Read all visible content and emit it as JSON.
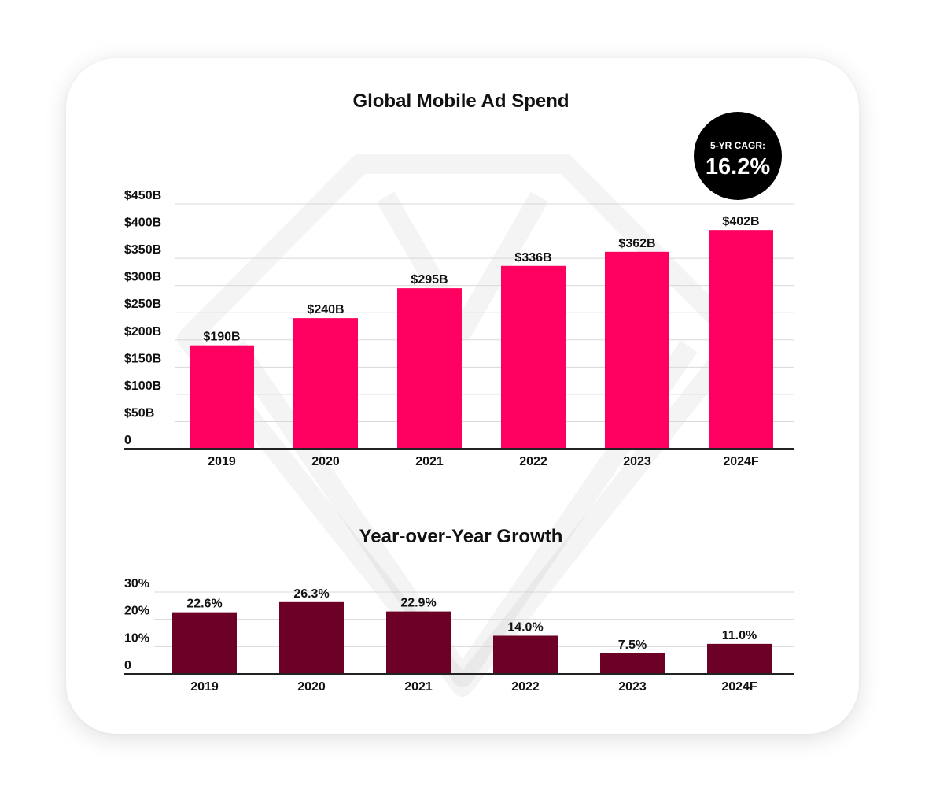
{
  "badge": {
    "label": "5-YR CAGR:",
    "value": "16.2%"
  },
  "colors": {
    "spend_bar": "#ff0060",
    "growth_bar": "#6d0026",
    "badge_bg": "#000000",
    "text": "#111111"
  },
  "chart_data": [
    {
      "type": "bar",
      "title": "Global Mobile Ad Spend",
      "categories": [
        "2019",
        "2020",
        "2021",
        "2022",
        "2023",
        "2024F"
      ],
      "values": [
        190,
        240,
        295,
        336,
        362,
        402
      ],
      "value_labels": [
        "$190B",
        "$240B",
        "$295B",
        "$336B",
        "$362B",
        "$402B"
      ],
      "y_ticks": [
        0,
        50,
        100,
        150,
        200,
        250,
        300,
        350,
        400,
        450
      ],
      "y_tick_labels": [
        "0",
        "$50B",
        "$100B",
        "$150B",
        "$200B",
        "$250B",
        "$300B",
        "$350B",
        "$400B",
        "$450B"
      ],
      "ylim": [
        0,
        450
      ],
      "grid": true
    },
    {
      "type": "bar",
      "title": "Year-over-Year Growth",
      "categories": [
        "2019",
        "2020",
        "2021",
        "2022",
        "2023",
        "2024F"
      ],
      "values": [
        22.6,
        26.3,
        22.9,
        14.0,
        7.5,
        11.0
      ],
      "value_labels": [
        "22.6%",
        "26.3%",
        "22.9%",
        "14.0%",
        "7.5%",
        "11.0%"
      ],
      "y_ticks": [
        0,
        10,
        20,
        30
      ],
      "y_tick_labels": [
        "0",
        "10%",
        "20%",
        "30%"
      ],
      "ylim": [
        0,
        30
      ],
      "grid": true
    }
  ]
}
